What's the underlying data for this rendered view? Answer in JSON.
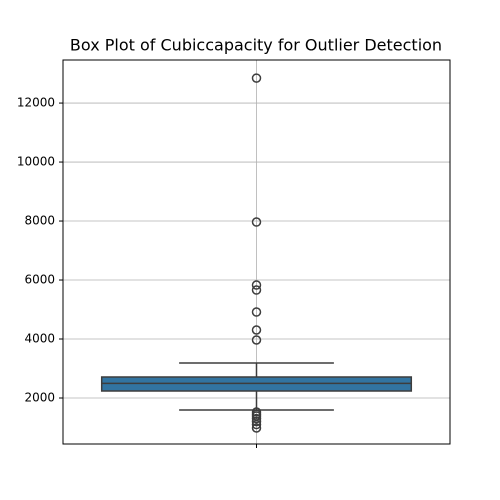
{
  "chart_data": {
    "type": "box",
    "title": "Box Plot of Cubiccapacity for Outlier Detection",
    "ylim": [
      440,
      13460
    ],
    "yticks": [
      2000,
      4000,
      6000,
      8000,
      10000,
      12000
    ],
    "grid": true,
    "color": "#3274a1",
    "box": {
      "whislo": 1593,
      "q1": 2237,
      "med": 2494,
      "q3": 2712,
      "whishi": 3186,
      "fliers": [
        12847,
        7966,
        5830,
        5661,
        4915,
        4305,
        3966,
        1525,
        1450,
        1390,
        1300,
        1200,
        1100,
        983
      ]
    }
  }
}
